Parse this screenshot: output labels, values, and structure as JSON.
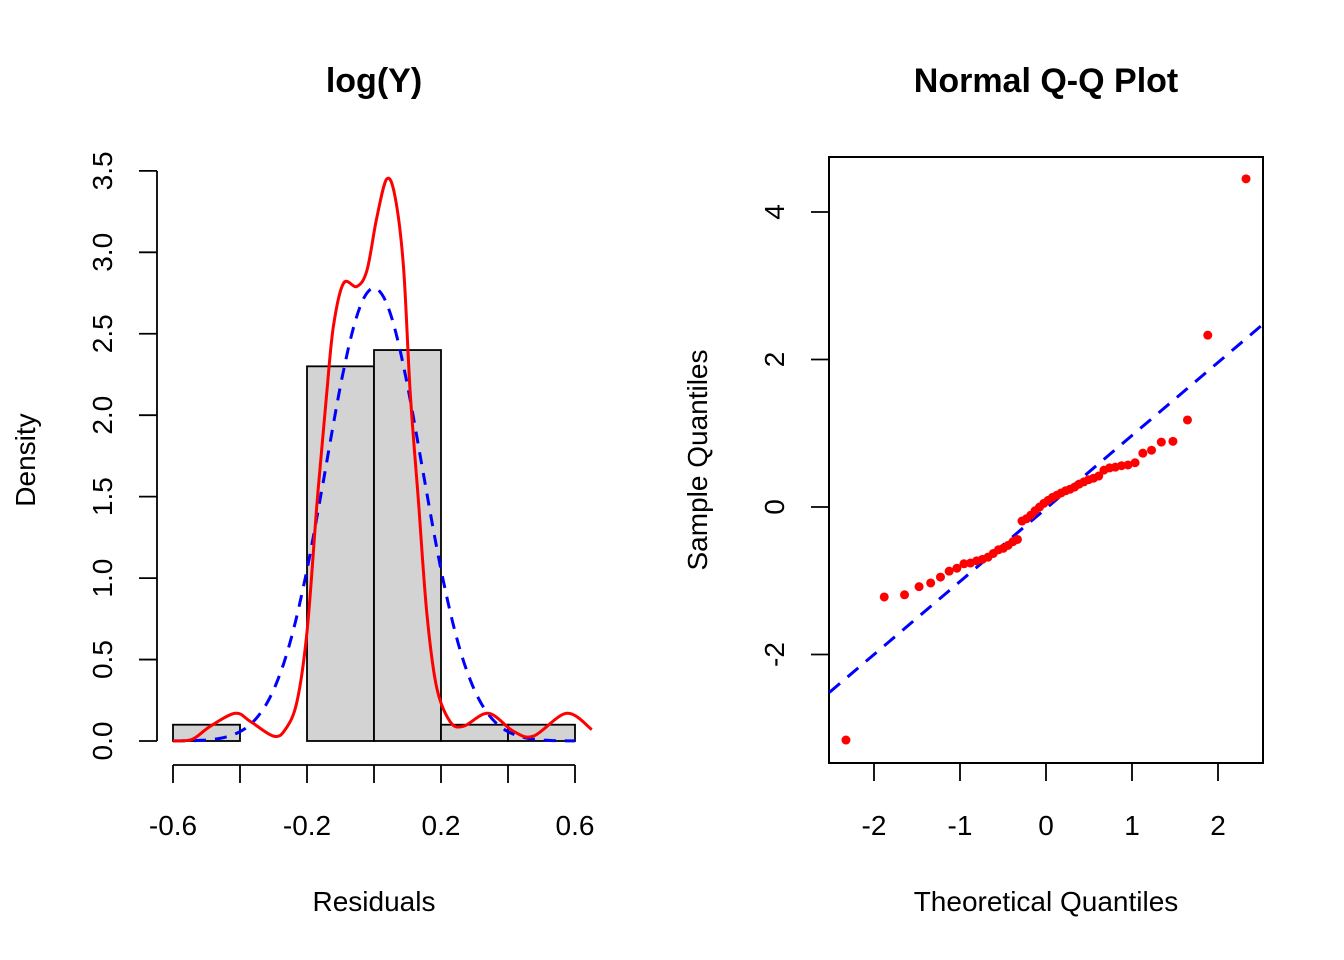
{
  "chart_data": [
    {
      "type": "bar",
      "title": "log(Y)",
      "xlabel": "Residuals",
      "ylabel": "Density",
      "xlim": [
        -0.6,
        0.6
      ],
      "ylim": [
        0,
        3.5
      ],
      "x_ticks": [
        -0.6,
        -0.4,
        -0.2,
        0.0,
        0.2,
        0.4,
        0.6
      ],
      "x_tick_labels": [
        "-0.6",
        "-0.2",
        "0.2",
        "0.6"
      ],
      "y_tick_labels": [
        "0.0",
        "0.5",
        "1.0",
        "1.5",
        "2.0",
        "2.5",
        "3.0",
        "3.5"
      ],
      "bins": [
        -0.6,
        -0.4,
        -0.2,
        0.0,
        0.2,
        0.4,
        0.6
      ],
      "density": [
        0.1,
        0.0,
        2.3,
        2.4,
        0.1,
        0.1
      ],
      "bar_color": "#D3D3D3",
      "normal_curve": {
        "mean": 0.0,
        "sd": 0.1435,
        "color": "#0000FF",
        "style": "dashed",
        "range": [
          -0.6,
          0.6
        ]
      },
      "kernel_density": {
        "color": "#FF0000",
        "x": [
          -0.6,
          -0.543,
          -0.489,
          -0.414,
          -0.369,
          -0.3,
          -0.265,
          -0.23,
          -0.2,
          -0.17,
          -0.141,
          -0.121,
          -0.091,
          -0.051,
          -0.021,
          0.008,
          0.038,
          0.063,
          0.088,
          0.108,
          0.133,
          0.158,
          0.187,
          0.227,
          0.267,
          0.341,
          0.416,
          0.476,
          0.575,
          0.65
        ],
        "y": [
          0.0,
          0.01,
          0.09,
          0.17,
          0.12,
          0.03,
          0.07,
          0.24,
          0.67,
          1.46,
          2.14,
          2.55,
          2.81,
          2.79,
          2.89,
          3.21,
          3.45,
          3.34,
          2.91,
          2.14,
          1.46,
          0.78,
          0.33,
          0.12,
          0.09,
          0.17,
          0.06,
          0.03,
          0.17,
          0.07
        ]
      }
    },
    {
      "type": "scatter",
      "title": "Normal Q-Q Plot",
      "xlabel": "Theoretical Quantiles",
      "ylabel": "Sample Quantiles",
      "xlim": [
        -2.52,
        2.52
      ],
      "ylim": [
        -3.47,
        4.75
      ],
      "x_tick_labels": [
        "-2",
        "-1",
        "0",
        "1",
        "2"
      ],
      "y_tick_labels": [
        "-2",
        "0",
        "2",
        "4"
      ],
      "point_color": "#FF0000",
      "x": [
        -2.326,
        -1.881,
        -1.645,
        -1.476,
        -1.341,
        -1.227,
        -1.126,
        -1.036,
        -0.954,
        -0.878,
        -0.806,
        -0.739,
        -0.674,
        -0.613,
        -0.553,
        -0.496,
        -0.44,
        -0.385,
        -0.332,
        -0.279,
        -0.228,
        -0.176,
        -0.126,
        -0.075,
        -0.025,
        0.025,
        0.075,
        0.126,
        0.176,
        0.228,
        0.279,
        0.332,
        0.385,
        0.44,
        0.496,
        0.553,
        0.613,
        0.674,
        0.739,
        0.806,
        0.878,
        0.954,
        1.036,
        1.126,
        1.227,
        1.341,
        1.476,
        1.645,
        1.881,
        2.326
      ],
      "y": [
        -3.16,
        -1.22,
        -1.19,
        -1.08,
        -1.03,
        -0.95,
        -0.87,
        -0.83,
        -0.77,
        -0.76,
        -0.73,
        -0.71,
        -0.68,
        -0.63,
        -0.58,
        -0.56,
        -0.52,
        -0.47,
        -0.44,
        -0.19,
        -0.16,
        -0.11,
        -0.05,
        0.0,
        0.05,
        0.09,
        0.13,
        0.16,
        0.19,
        0.22,
        0.24,
        0.27,
        0.31,
        0.34,
        0.37,
        0.39,
        0.42,
        0.5,
        0.53,
        0.54,
        0.56,
        0.57,
        0.6,
        0.73,
        0.77,
        0.88,
        0.89,
        1.18,
        2.33,
        4.45
      ],
      "qq_line": {
        "intercept": -0.02,
        "slope": 0.99,
        "color": "#0000FF",
        "style": "dashed"
      }
    }
  ]
}
